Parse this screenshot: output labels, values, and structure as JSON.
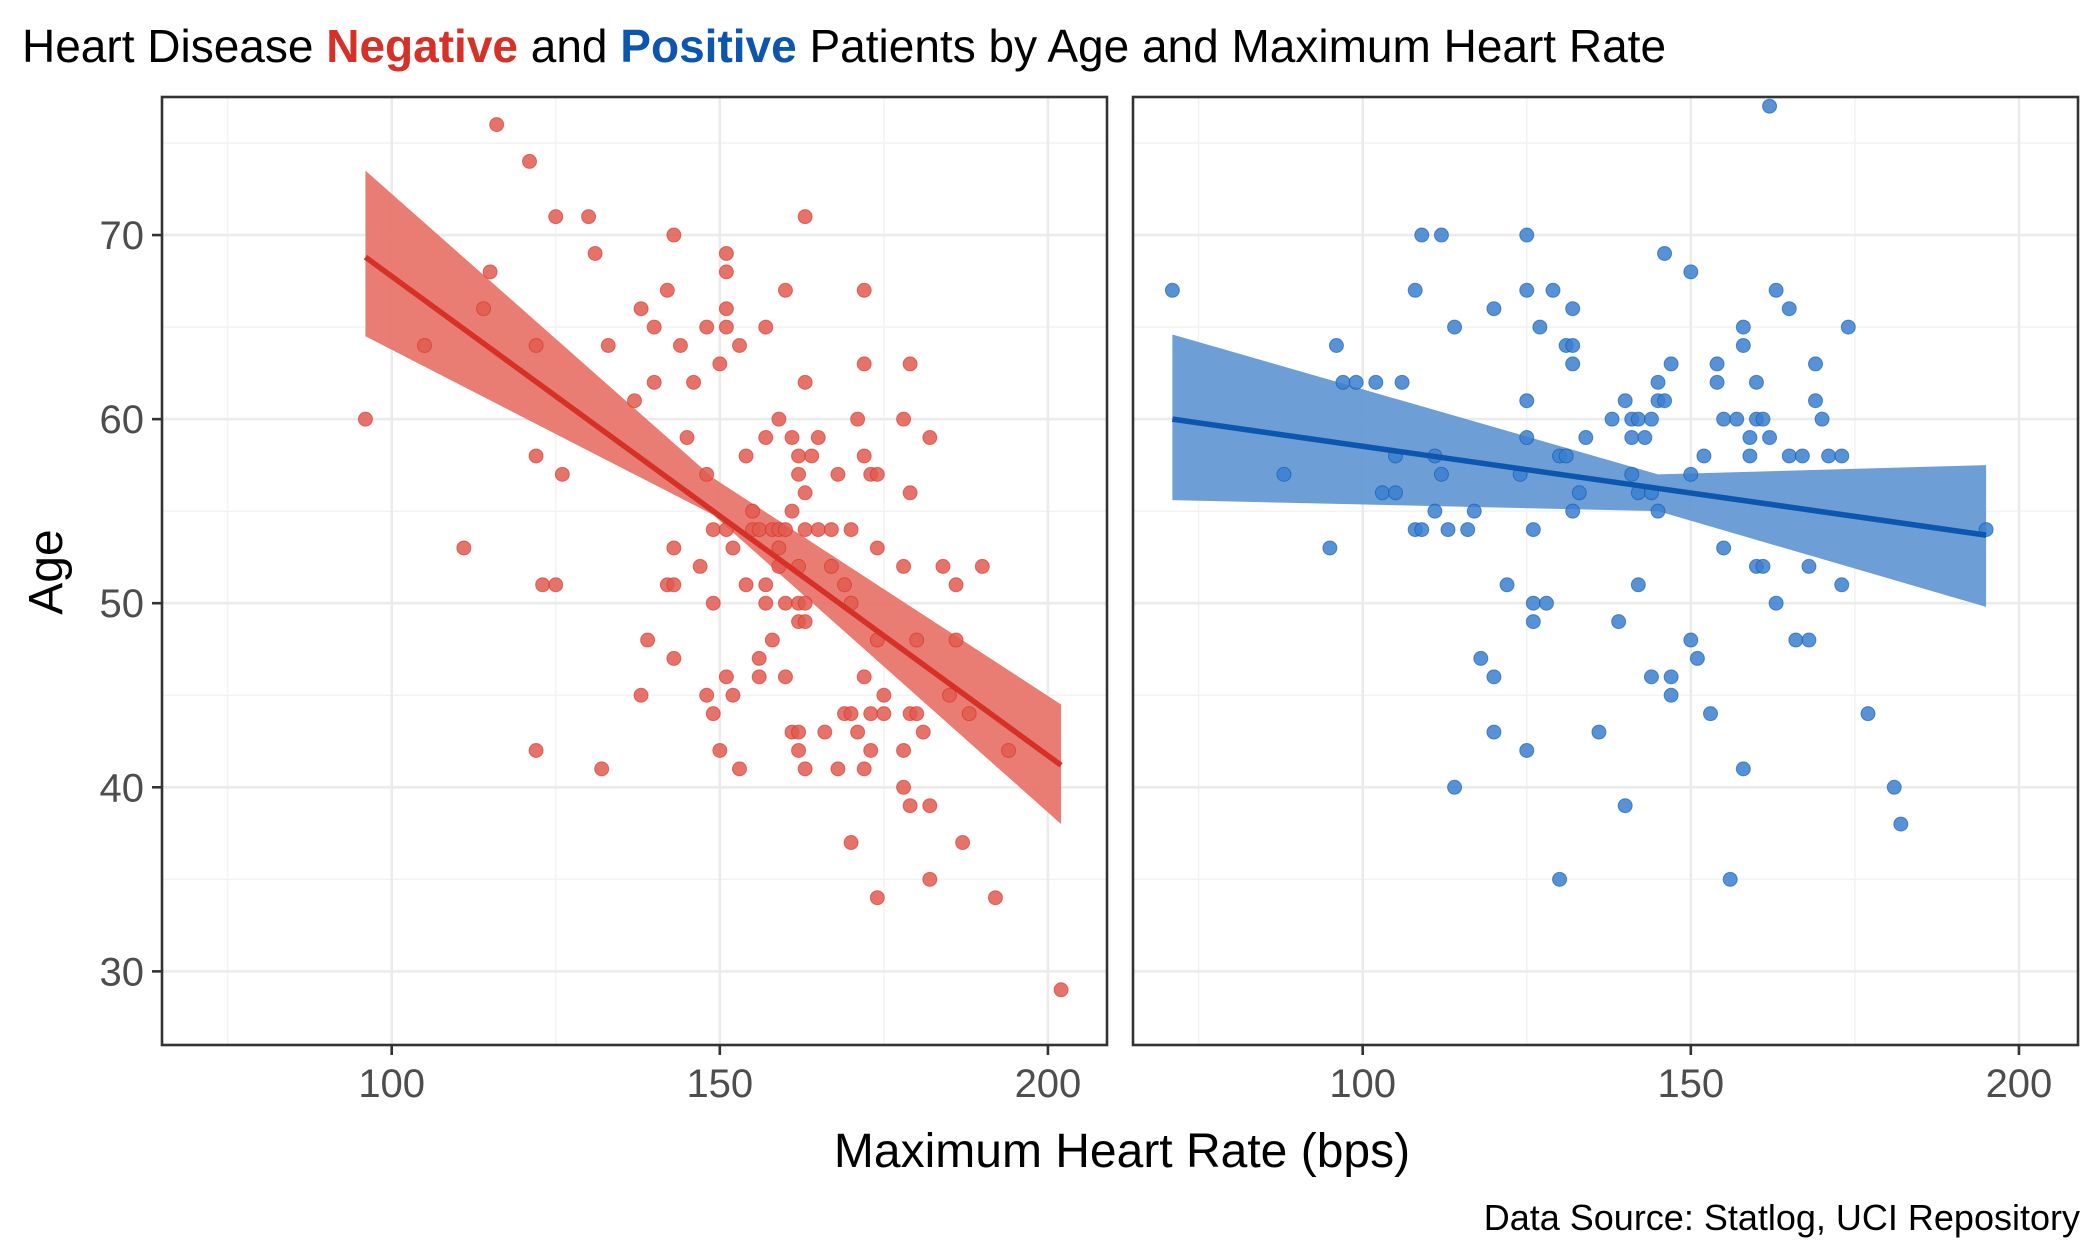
{
  "title": {
    "part1": "Heart Disease ",
    "negative": "Negative",
    "part2": " and ",
    "positive": "Positive",
    "part3": " Patients by Age and Maximum Heart Rate"
  },
  "caption": "Data Source: Statlog, UCI Repository",
  "colors": {
    "negative": "#d73027",
    "negative_point": "#e05a4f",
    "negative_band": "#e8766d",
    "positive": "#0d56b0",
    "positive_point": "#3a7fd0",
    "positive_band": "#6599d4"
  },
  "chart_data": {
    "type": "scatter",
    "xlabel": "Maximum Heart Rate (bps)",
    "ylabel": "Age",
    "xlim": [
      65,
      209
    ],
    "ylim": [
      26,
      77.5
    ],
    "x_ticks": [
      100,
      150,
      200
    ],
    "y_ticks": [
      30,
      40,
      50,
      60,
      70
    ],
    "grid": true,
    "panels": [
      {
        "name": "Negative",
        "fit": {
          "x_start": 96,
          "x_end": 202,
          "y_start": 68.8,
          "y_end": 41.2
        },
        "ci_lower": [
          [
            96,
            64.5
          ],
          [
            149,
            54.8
          ],
          [
            202,
            38.0
          ]
        ],
        "ci_upper": [
          [
            96,
            73.5
          ],
          [
            149,
            56.8
          ],
          [
            202,
            44.5
          ]
        ],
        "points": [
          [
            96,
            60
          ],
          [
            105,
            64
          ],
          [
            111,
            53
          ],
          [
            114,
            66
          ],
          [
            115,
            68
          ],
          [
            116,
            76
          ],
          [
            121,
            74
          ],
          [
            122,
            64
          ],
          [
            122,
            58
          ],
          [
            122,
            42
          ],
          [
            123,
            51
          ],
          [
            125,
            71
          ],
          [
            125,
            51
          ],
          [
            126,
            57
          ],
          [
            130,
            71
          ],
          [
            131,
            69
          ],
          [
            132,
            41
          ],
          [
            133,
            64
          ],
          [
            137,
            61
          ],
          [
            138,
            66
          ],
          [
            138,
            45
          ],
          [
            139,
            48
          ],
          [
            140,
            65
          ],
          [
            140,
            62
          ],
          [
            142,
            67
          ],
          [
            142,
            51
          ],
          [
            143,
            70
          ],
          [
            143,
            53
          ],
          [
            143,
            51
          ],
          [
            143,
            47
          ],
          [
            144,
            64
          ],
          [
            145,
            59
          ],
          [
            146,
            62
          ],
          [
            147,
            52
          ],
          [
            148,
            65
          ],
          [
            148,
            57
          ],
          [
            148,
            45
          ],
          [
            149,
            54
          ],
          [
            149,
            50
          ],
          [
            149,
            44
          ],
          [
            150,
            63
          ],
          [
            150,
            42
          ],
          [
            151,
            69
          ],
          [
            151,
            68
          ],
          [
            151,
            66
          ],
          [
            151,
            65
          ],
          [
            151,
            54
          ],
          [
            151,
            46
          ],
          [
            152,
            53
          ],
          [
            152,
            45
          ],
          [
            153,
            64
          ],
          [
            153,
            41
          ],
          [
            154,
            58
          ],
          [
            154,
            51
          ],
          [
            155,
            55
          ],
          [
            155,
            54
          ],
          [
            156,
            54
          ],
          [
            156,
            47
          ],
          [
            156,
            46
          ],
          [
            157,
            65
          ],
          [
            157,
            59
          ],
          [
            157,
            51
          ],
          [
            157,
            50
          ],
          [
            158,
            54
          ],
          [
            158,
            48
          ],
          [
            159,
            60
          ],
          [
            159,
            54
          ],
          [
            159,
            53
          ],
          [
            159,
            52
          ],
          [
            160,
            67
          ],
          [
            160,
            54
          ],
          [
            160,
            50
          ],
          [
            160,
            46
          ],
          [
            161,
            59
          ],
          [
            161,
            55
          ],
          [
            161,
            43
          ],
          [
            162,
            58
          ],
          [
            162,
            57
          ],
          [
            162,
            52
          ],
          [
            162,
            50
          ],
          [
            162,
            49
          ],
          [
            162,
            43
          ],
          [
            162,
            42
          ],
          [
            163,
            71
          ],
          [
            163,
            56
          ],
          [
            163,
            54
          ],
          [
            163,
            50
          ],
          [
            163,
            49
          ],
          [
            163,
            41
          ],
          [
            163,
            62
          ],
          [
            164,
            58
          ],
          [
            165,
            54
          ],
          [
            165,
            59
          ],
          [
            166,
            43
          ],
          [
            167,
            54
          ],
          [
            167,
            52
          ],
          [
            168,
            57
          ],
          [
            168,
            41
          ],
          [
            169,
            51
          ],
          [
            169,
            44
          ],
          [
            170,
            37
          ],
          [
            170,
            54
          ],
          [
            170,
            44
          ],
          [
            170,
            50
          ],
          [
            171,
            60
          ],
          [
            171,
            43
          ],
          [
            172,
            58
          ],
          [
            172,
            41
          ],
          [
            172,
            46
          ],
          [
            172,
            63
          ],
          [
            172,
            67
          ],
          [
            173,
            57
          ],
          [
            173,
            44
          ],
          [
            173,
            42
          ],
          [
            174,
            57
          ],
          [
            174,
            34
          ],
          [
            174,
            53
          ],
          [
            174,
            48
          ],
          [
            175,
            45
          ],
          [
            175,
            44
          ],
          [
            178,
            60
          ],
          [
            178,
            52
          ],
          [
            178,
            42
          ],
          [
            178,
            40
          ],
          [
            179,
            56
          ],
          [
            179,
            39
          ],
          [
            179,
            44
          ],
          [
            179,
            63
          ],
          [
            180,
            48
          ],
          [
            180,
            44
          ],
          [
            181,
            43
          ],
          [
            182,
            59
          ],
          [
            182,
            39
          ],
          [
            182,
            35
          ],
          [
            184,
            52
          ],
          [
            185,
            45
          ],
          [
            186,
            51
          ],
          [
            186,
            48
          ],
          [
            187,
            37
          ],
          [
            188,
            44
          ],
          [
            190,
            52
          ],
          [
            192,
            34
          ],
          [
            194,
            42
          ],
          [
            202,
            29
          ]
        ]
      },
      {
        "name": "Positive",
        "fit": {
          "x_start": 71,
          "x_end": 195,
          "y_start": 60.0,
          "y_end": 53.7
        },
        "ci_lower": [
          [
            71,
            55.6
          ],
          [
            145,
            55.0
          ],
          [
            195,
            49.8
          ]
        ],
        "ci_upper": [
          [
            71,
            64.6
          ],
          [
            145,
            57.0
          ],
          [
            195,
            57.5
          ]
        ],
        "points": [
          [
            71,
            67
          ],
          [
            88,
            57
          ],
          [
            95,
            53
          ],
          [
            96,
            64
          ],
          [
            97,
            62
          ],
          [
            99,
            62
          ],
          [
            102,
            62
          ],
          [
            103,
            56
          ],
          [
            105,
            56
          ],
          [
            105,
            58
          ],
          [
            106,
            62
          ],
          [
            108,
            67
          ],
          [
            108,
            54
          ],
          [
            109,
            70
          ],
          [
            109,
            54
          ],
          [
            111,
            58
          ],
          [
            111,
            55
          ],
          [
            112,
            57
          ],
          [
            112,
            70
          ],
          [
            113,
            54
          ],
          [
            114,
            65
          ],
          [
            114,
            40
          ],
          [
            116,
            54
          ],
          [
            117,
            55
          ],
          [
            118,
            47
          ],
          [
            120,
            66
          ],
          [
            120,
            46
          ],
          [
            120,
            43
          ],
          [
            122,
            51
          ],
          [
            124,
            57
          ],
          [
            125,
            70
          ],
          [
            125,
            67
          ],
          [
            125,
            61
          ],
          [
            125,
            59
          ],
          [
            125,
            42
          ],
          [
            126,
            54
          ],
          [
            126,
            50
          ],
          [
            126,
            49
          ],
          [
            127,
            65
          ],
          [
            128,
            50
          ],
          [
            129,
            67
          ],
          [
            130,
            58
          ],
          [
            130,
            35
          ],
          [
            131,
            64
          ],
          [
            131,
            58
          ],
          [
            132,
            66
          ],
          [
            132,
            64
          ],
          [
            132,
            63
          ],
          [
            132,
            55
          ],
          [
            133,
            56
          ],
          [
            134,
            59
          ],
          [
            136,
            43
          ],
          [
            138,
            60
          ],
          [
            139,
            49
          ],
          [
            140,
            61
          ],
          [
            140,
            39
          ],
          [
            141,
            60
          ],
          [
            141,
            59
          ],
          [
            141,
            57
          ],
          [
            142,
            60
          ],
          [
            142,
            51
          ],
          [
            142,
            56
          ],
          [
            143,
            59
          ],
          [
            144,
            46
          ],
          [
            144,
            56
          ],
          [
            144,
            60
          ],
          [
            145,
            61
          ],
          [
            145,
            55
          ],
          [
            145,
            62
          ],
          [
            146,
            61
          ],
          [
            146,
            69
          ],
          [
            147,
            63
          ],
          [
            147,
            46
          ],
          [
            147,
            45
          ],
          [
            150,
            68
          ],
          [
            150,
            57
          ],
          [
            150,
            48
          ],
          [
            151,
            47
          ],
          [
            152,
            58
          ],
          [
            153,
            44
          ],
          [
            154,
            63
          ],
          [
            154,
            62
          ],
          [
            155,
            60
          ],
          [
            155,
            53
          ],
          [
            156,
            35
          ],
          [
            157,
            60
          ],
          [
            158,
            65
          ],
          [
            158,
            64
          ],
          [
            158,
            41
          ],
          [
            159,
            59
          ],
          [
            159,
            58
          ],
          [
            160,
            62
          ],
          [
            160,
            60
          ],
          [
            160,
            52
          ],
          [
            161,
            60
          ],
          [
            161,
            52
          ],
          [
            162,
            59
          ],
          [
            162,
            77
          ],
          [
            163,
            67
          ],
          [
            163,
            50
          ],
          [
            165,
            66
          ],
          [
            165,
            58
          ],
          [
            166,
            48
          ],
          [
            167,
            58
          ],
          [
            168,
            52
          ],
          [
            168,
            48
          ],
          [
            169,
            63
          ],
          [
            169,
            61
          ],
          [
            170,
            60
          ],
          [
            171,
            58
          ],
          [
            173,
            58
          ],
          [
            173,
            51
          ],
          [
            174,
            65
          ],
          [
            177,
            44
          ],
          [
            181,
            40
          ],
          [
            182,
            38
          ],
          [
            195,
            54
          ]
        ]
      }
    ]
  }
}
